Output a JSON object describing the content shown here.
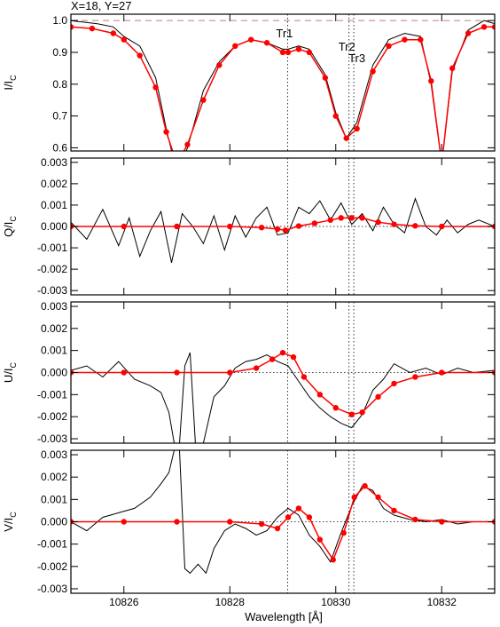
{
  "header": {
    "text": "X=18, Y=27"
  },
  "xaxis": {
    "label": "Wavelength [Å]",
    "range": [
      10825.0,
      10833.0
    ],
    "ticks": [
      10826,
      10828,
      10830,
      10832
    ]
  },
  "markers": [
    {
      "name": "Tr1",
      "x": 10829.09
    },
    {
      "name": "Tr2",
      "x": 10830.25
    },
    {
      "name": "Tr3",
      "x": 10830.34
    }
  ],
  "chart_data": [
    {
      "type": "line",
      "id": "I",
      "ylabel": "I/I",
      "ylabel_sub": "C",
      "ylim": [
        0.59,
        1.02
      ],
      "yticks": [
        "0.6",
        "0.7",
        "0.8",
        "0.9",
        "1.0"
      ],
      "yticks_values": [
        0.6,
        0.7,
        0.8,
        0.9,
        1.0
      ],
      "reference_line": 1.0,
      "show_marker_labels": true,
      "series": [
        {
          "role": "observed",
          "color": "#000000",
          "x": [
            10825.0,
            10825.5,
            10825.8,
            10826.0,
            10826.3,
            10826.6,
            10826.8,
            10827.0,
            10827.2,
            10827.5,
            10827.8,
            10828.1,
            10828.4,
            10828.7,
            10829.0,
            10829.1,
            10829.3,
            10829.5,
            10829.8,
            10830.0,
            10830.2,
            10830.4,
            10830.7,
            10831.0,
            10831.3,
            10831.6,
            10831.8,
            10832.0,
            10832.2,
            10832.5,
            10832.8,
            10833.0
          ],
          "y": [
            1.0,
            0.99,
            0.98,
            0.95,
            0.92,
            0.82,
            0.66,
            0.52,
            0.6,
            0.78,
            0.87,
            0.92,
            0.94,
            0.93,
            0.91,
            0.91,
            0.92,
            0.91,
            0.83,
            0.71,
            0.63,
            0.68,
            0.86,
            0.94,
            0.96,
            0.95,
            0.8,
            0.55,
            0.84,
            0.97,
            1.0,
            0.99
          ]
        },
        {
          "role": "fit",
          "color": "#ff0000",
          "x": [
            10825.0,
            10825.4,
            10825.8,
            10826.0,
            10826.3,
            10826.6,
            10826.8,
            10827.0,
            10827.2,
            10827.5,
            10827.8,
            10828.1,
            10828.4,
            10828.7,
            10829.0,
            10829.1,
            10829.3,
            10829.5,
            10829.8,
            10830.0,
            10830.2,
            10830.4,
            10830.7,
            10831.0,
            10831.3,
            10831.6,
            10831.8,
            10832.0,
            10832.2,
            10832.5,
            10832.8,
            10833.0
          ],
          "y": [
            0.98,
            0.975,
            0.96,
            0.94,
            0.89,
            0.79,
            0.65,
            0.55,
            0.61,
            0.75,
            0.86,
            0.92,
            0.94,
            0.93,
            0.9,
            0.9,
            0.91,
            0.9,
            0.82,
            0.7,
            0.63,
            0.66,
            0.84,
            0.92,
            0.94,
            0.94,
            0.81,
            0.55,
            0.85,
            0.96,
            0.98,
            0.98
          ]
        }
      ]
    },
    {
      "type": "line",
      "id": "Q",
      "ylabel": "Q/I",
      "ylabel_sub": "C",
      "ylim": [
        -0.0032,
        0.0032
      ],
      "yticks": [
        "-0.003",
        "-0.002",
        "-0.001",
        "0.000",
        "0.001",
        "0.002",
        "0.003"
      ],
      "yticks_values": [
        -0.003,
        -0.002,
        -0.001,
        0.0,
        0.001,
        0.002,
        0.003
      ],
      "reference_line": 0.0,
      "series": [
        {
          "role": "observed",
          "color": "#000000",
          "x": [
            10825.0,
            10825.3,
            10825.6,
            10825.9,
            10826.1,
            10826.3,
            10826.5,
            10826.7,
            10826.9,
            10827.1,
            10827.3,
            10827.5,
            10827.7,
            10827.9,
            10828.1,
            10828.3,
            10828.5,
            10828.7,
            10828.9,
            10829.1,
            10829.3,
            10829.5,
            10829.7,
            10829.9,
            10830.1,
            10830.3,
            10830.5,
            10830.7,
            10830.9,
            10831.1,
            10831.3,
            10831.5,
            10831.7,
            10831.9,
            10832.1,
            10832.3,
            10832.5,
            10832.7,
            10833.0
          ],
          "y": [
            0.0002,
            -0.0006,
            0.0008,
            -0.0009,
            0.0004,
            -0.0014,
            -0.0002,
            0.0007,
            -0.0017,
            0.0006,
            0.0,
            -0.0008,
            0.0005,
            -0.0011,
            0.0005,
            -0.0005,
            0.0004,
            0.0009,
            -0.0004,
            -0.0003,
            0.0009,
            0.0006,
            0.0012,
            0.0003,
            0.0011,
            0.0001,
            0.0006,
            -0.0002,
            0.0009,
            0.0001,
            -0.0003,
            0.0013,
            0.0,
            -0.0004,
            0.0003,
            -0.0003,
            0.0001,
            0.0003,
            0.0
          ]
        },
        {
          "role": "fit",
          "color": "#ff0000",
          "x": [
            10825.0,
            10826.0,
            10827.0,
            10828.0,
            10828.6,
            10828.9,
            10829.05,
            10829.3,
            10829.6,
            10829.9,
            10830.1,
            10830.3,
            10830.5,
            10830.8,
            10831.1,
            10831.5,
            10832.0,
            10833.0
          ],
          "y": [
            0.0,
            0.0,
            0.0,
            0.0,
            -5e-05,
            -0.00012,
            -0.00018,
            2e-05,
            0.00015,
            0.0003,
            0.0004,
            0.0004,
            0.0004,
            0.0002,
            0.0001,
            3e-05,
            0.0,
            0.0
          ]
        }
      ]
    },
    {
      "type": "line",
      "id": "U",
      "ylabel": "U/I",
      "ylabel_sub": "C",
      "ylim": [
        -0.0032,
        0.0032
      ],
      "yticks": [
        "-0.003",
        "-0.002",
        "-0.001",
        "0.000",
        "0.001",
        "0.002",
        "0.003"
      ],
      "yticks_values": [
        -0.003,
        -0.002,
        -0.001,
        0.0,
        0.001,
        0.002,
        0.003
      ],
      "reference_line": 0.0,
      "series": [
        {
          "role": "observed",
          "color": "#000000",
          "x": [
            10825.0,
            10825.3,
            10825.6,
            10825.9,
            10826.2,
            10826.5,
            10826.7,
            10826.85,
            10826.95,
            10827.05,
            10827.15,
            10827.25,
            10827.35,
            10827.5,
            10827.7,
            10827.9,
            10828.1,
            10828.3,
            10828.5,
            10828.7,
            10828.9,
            10829.1,
            10829.3,
            10829.5,
            10829.7,
            10829.9,
            10830.1,
            10830.3,
            10830.5,
            10830.7,
            10830.9,
            10831.1,
            10831.4,
            10831.7,
            10832.0,
            10832.3,
            10832.6,
            10833.0
          ],
          "y": [
            0.0001,
            0.0003,
            -0.0002,
            0.0005,
            -0.0003,
            -0.0006,
            -0.0009,
            -0.0018,
            -0.0032,
            -0.0032,
            0.0003,
            0.0009,
            -0.0032,
            -0.0032,
            -0.0011,
            -0.0006,
            0.0002,
            0.0005,
            0.0006,
            0.0008,
            0.0005,
            0.0003,
            -0.0004,
            -0.0011,
            -0.0016,
            -0.002,
            -0.0023,
            -0.0025,
            -0.0019,
            -0.0008,
            -0.0003,
            0.0004,
            0.0,
            0.0002,
            -0.0001,
            0.0002,
            0.0,
            0.0001
          ]
        },
        {
          "role": "fit",
          "color": "#ff0000",
          "x": [
            10825.0,
            10826.0,
            10827.0,
            10828.0,
            10828.5,
            10828.8,
            10829.0,
            10829.2,
            10829.4,
            10829.7,
            10830.0,
            10830.3,
            10830.5,
            10830.8,
            10831.1,
            10831.5,
            10832.0,
            10833.0
          ],
          "y": [
            0.0,
            0.0,
            0.0,
            0.0,
            0.0002,
            0.0006,
            0.0009,
            0.0007,
            -0.0002,
            -0.001,
            -0.0016,
            -0.0019,
            -0.0018,
            -0.0011,
            -0.0005,
            -0.0002,
            0.0,
            0.0
          ]
        }
      ]
    },
    {
      "type": "line",
      "id": "V",
      "ylabel": "V/I",
      "ylabel_sub": "C",
      "ylim": [
        -0.0032,
        0.0032
      ],
      "yticks": [
        "-0.003",
        "-0.002",
        "-0.001",
        "0.000",
        "0.001",
        "0.002",
        "0.003"
      ],
      "yticks_values": [
        -0.003,
        -0.002,
        -0.001,
        0.0,
        0.001,
        0.002,
        0.003
      ],
      "reference_line": 0.0,
      "series": [
        {
          "role": "observed",
          "color": "#000000",
          "x": [
            10825.0,
            10825.3,
            10825.6,
            10825.9,
            10826.2,
            10826.5,
            10826.7,
            10826.85,
            10826.95,
            10827.05,
            10827.15,
            10827.25,
            10827.4,
            10827.55,
            10827.7,
            10827.9,
            10828.1,
            10828.3,
            10828.5,
            10828.7,
            10828.9,
            10829.1,
            10829.3,
            10829.5,
            10829.7,
            10829.9,
            10830.1,
            10830.3,
            10830.5,
            10830.7,
            10830.9,
            10831.1,
            10831.4,
            10831.7,
            10832.0,
            10832.3,
            10832.6,
            10833.0
          ],
          "y": [
            0.0,
            -0.0004,
            0.0002,
            0.0004,
            0.0006,
            0.0011,
            0.0017,
            0.0022,
            0.0032,
            0.0032,
            -0.0021,
            -0.0023,
            -0.0019,
            -0.0023,
            -0.0012,
            -0.0004,
            -0.0001,
            -0.0003,
            -0.0006,
            -0.0004,
            0.0002,
            0.0006,
            0.0003,
            -0.0006,
            -0.0011,
            -0.0018,
            -0.0005,
            0.0007,
            0.0016,
            0.0014,
            0.0006,
            0.0003,
            0.0001,
            0.0,
            0.0001,
            -0.0001,
            0.0,
            0.0
          ]
        },
        {
          "role": "fit",
          "color": "#ff0000",
          "x": [
            10825.0,
            10826.0,
            10827.0,
            10828.0,
            10828.6,
            10828.9,
            10829.1,
            10829.3,
            10829.5,
            10829.7,
            10829.95,
            10830.15,
            10830.35,
            10830.55,
            10830.8,
            10831.1,
            10831.5,
            10832.0,
            10833.0
          ],
          "y": [
            0.0,
            0.0,
            0.0,
            0.0,
            -0.0001,
            -0.0003,
            0.0002,
            0.0006,
            0.0002,
            -0.0008,
            -0.0017,
            -0.0005,
            0.0011,
            0.0016,
            0.0011,
            0.0005,
            0.0001,
            0.0,
            0.0
          ]
        }
      ]
    }
  ]
}
